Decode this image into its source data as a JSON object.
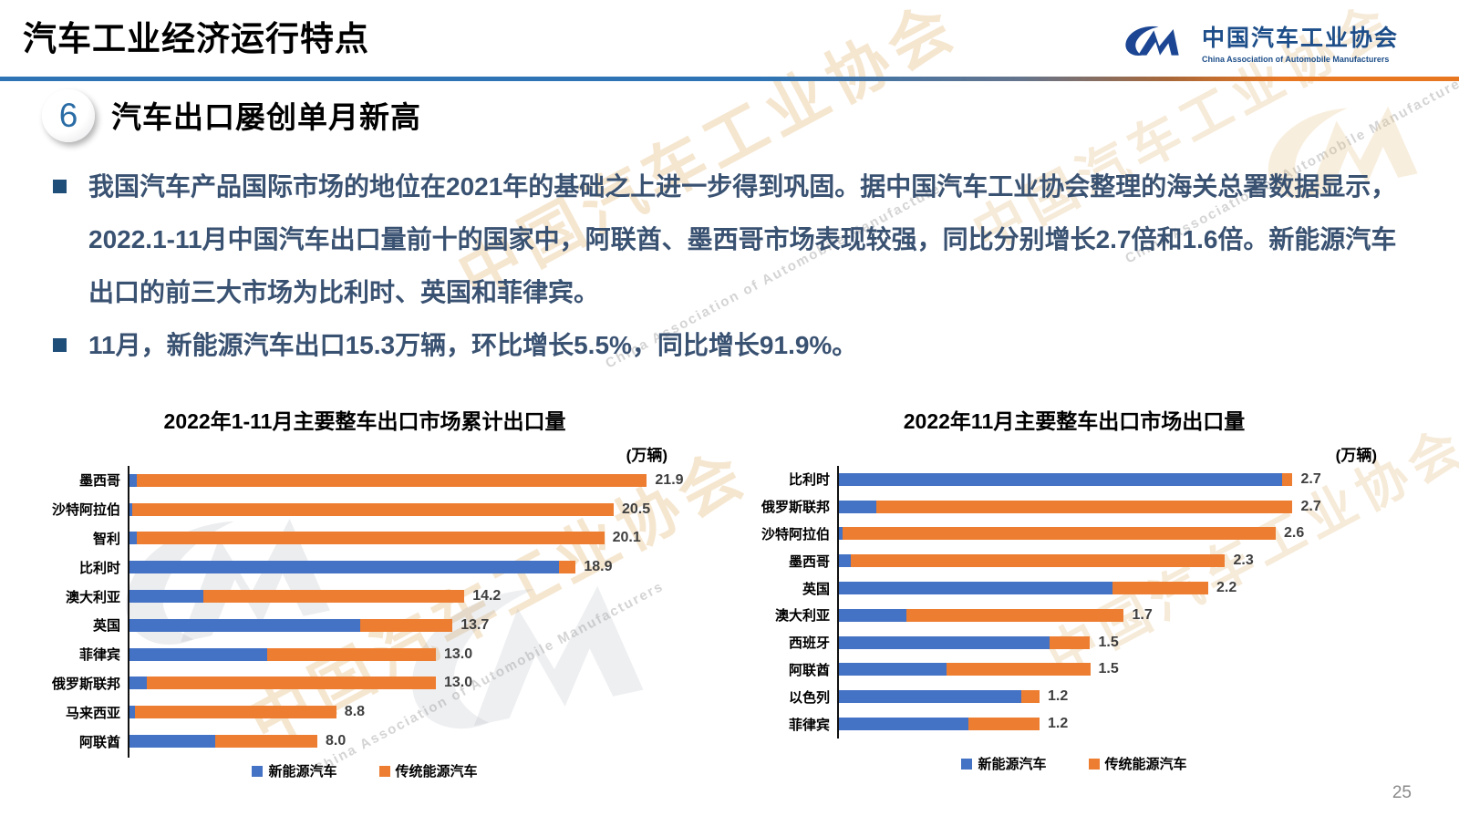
{
  "header": {
    "title": "汽车工业经济运行特点",
    "logo": {
      "name_cn": "中国汽车工业协会",
      "name_en": "China Association of Automobile Manufacturers"
    }
  },
  "section": {
    "number": "6",
    "heading": "汽车出口屡创单月新高"
  },
  "bullets": [
    "我国汽车产品国际市场的地位在2021年的基础之上进一步得到巩固。据中国汽车工业协会整理的海关总署数据显示，2022.1-11月中国汽车出口量前十的国家中，阿联酋、墨西哥市场表现较强，同比分别增长2.7倍和1.6倍。新能源汽车出口的前三大市场为比利时、英国和菲律宾。",
    "11月，新能源汽车出口15.3万辆，环比增长5.5%，同比增长91.9%。"
  ],
  "watermark": {
    "cn": "中国汽车工业协会",
    "en": "China Association of Automobile Manufacturers"
  },
  "colors": {
    "nev_blue": "#4472C4",
    "trad_orange": "#ED7D31",
    "divider_blue": "#2E74B5",
    "divider_orange": "#E87722",
    "logo_blue": "#1D4E89",
    "body_text": "#3A5272",
    "bullet_square": "#1F4E79"
  },
  "page_number": "25",
  "chart_data": [
    {
      "type": "bar",
      "orientation": "horizontal",
      "stacked": true,
      "title": "2022年1-11月主要整车出口市场累计出口量",
      "unit_label": "(万辆)",
      "xlabel": "",
      "ylabel": "",
      "xlim": [
        0,
        22.5
      ],
      "grid": false,
      "legend_position": "bottom",
      "categories": [
        "墨西哥",
        "沙特阿拉伯",
        "智利",
        "比利时",
        "澳大利亚",
        "英国",
        "菲律宾",
        "俄罗斯联邦",
        "马来西亚",
        "阿联酋"
      ],
      "series": [
        {
          "name": "新能源汽车",
          "color": "#4472C4",
          "values": [
            0.4,
            0.2,
            0.4,
            18.2,
            3.2,
            9.8,
            5.9,
            0.8,
            0.3,
            3.7
          ]
        },
        {
          "name": "传统能源汽车",
          "color": "#ED7D31",
          "values": [
            21.5,
            20.3,
            19.7,
            0.7,
            11.0,
            3.9,
            7.1,
            12.2,
            8.5,
            4.3
          ]
        }
      ],
      "totals": [
        "21.9",
        "20.5",
        "20.1",
        "18.9",
        "14.2",
        "13.7",
        "13.0",
        "13.0",
        "8.8",
        "8.0"
      ]
    },
    {
      "type": "bar",
      "orientation": "horizontal",
      "stacked": true,
      "title": "2022年11月主要整车出口市场出口量",
      "unit_label": "(万辆)",
      "xlabel": "",
      "ylabel": "",
      "xlim": [
        0,
        2.8
      ],
      "grid": false,
      "legend_position": "bottom",
      "categories": [
        "比利时",
        "俄罗斯联邦",
        "沙特阿拉伯",
        "墨西哥",
        "英国",
        "澳大利亚",
        "西班牙",
        "阿联酋",
        "以色列",
        "菲律宾"
      ],
      "series": [
        {
          "name": "新能源汽车",
          "color": "#4472C4",
          "values": [
            2.64,
            0.23,
            0.03,
            0.08,
            1.63,
            0.41,
            1.26,
            0.65,
            1.09,
            0.78
          ]
        },
        {
          "name": "传统能源汽车",
          "color": "#ED7D31",
          "values": [
            0.06,
            2.47,
            2.57,
            2.22,
            0.57,
            1.29,
            0.24,
            0.85,
            0.11,
            0.42
          ]
        }
      ],
      "totals": [
        "2.7",
        "2.7",
        "2.6",
        "2.3",
        "2.2",
        "1.7",
        "1.5",
        "1.5",
        "1.2",
        "1.2"
      ]
    }
  ]
}
